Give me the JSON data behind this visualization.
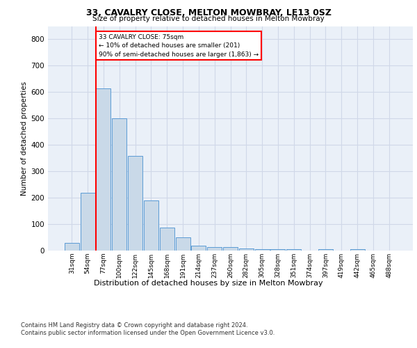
{
  "title": "33, CAVALRY CLOSE, MELTON MOWBRAY, LE13 0SZ",
  "subtitle": "Size of property relative to detached houses in Melton Mowbray",
  "xlabel": "Distribution of detached houses by size in Melton Mowbray",
  "ylabel": "Number of detached properties",
  "categories": [
    "31sqm",
    "54sqm",
    "77sqm",
    "100sqm",
    "122sqm",
    "145sqm",
    "168sqm",
    "191sqm",
    "214sqm",
    "237sqm",
    "260sqm",
    "282sqm",
    "305sqm",
    "328sqm",
    "351sqm",
    "374sqm",
    "397sqm",
    "419sqm",
    "442sqm",
    "465sqm",
    "488sqm"
  ],
  "values": [
    30,
    220,
    615,
    500,
    358,
    190,
    88,
    50,
    18,
    14,
    13,
    8,
    6,
    5,
    5,
    0,
    6,
    0,
    6,
    0,
    0
  ],
  "bar_color": "#c9d9e8",
  "bar_edge_color": "#5b9bd5",
  "grid_color": "#d0d8e8",
  "background_color": "#eaf0f8",
  "annotation_box_text": "33 CAVALRY CLOSE: 75sqm\n← 10% of detached houses are smaller (201)\n90% of semi-detached houses are larger (1,863) →",
  "annotation_box_color": "white",
  "annotation_box_edge_color": "red",
  "property_line_color": "red",
  "ylim": [
    0,
    850
  ],
  "yticks": [
    0,
    100,
    200,
    300,
    400,
    500,
    600,
    700,
    800
  ],
  "footer_line1": "Contains HM Land Registry data © Crown copyright and database right 2024.",
  "footer_line2": "Contains public sector information licensed under the Open Government Licence v3.0."
}
